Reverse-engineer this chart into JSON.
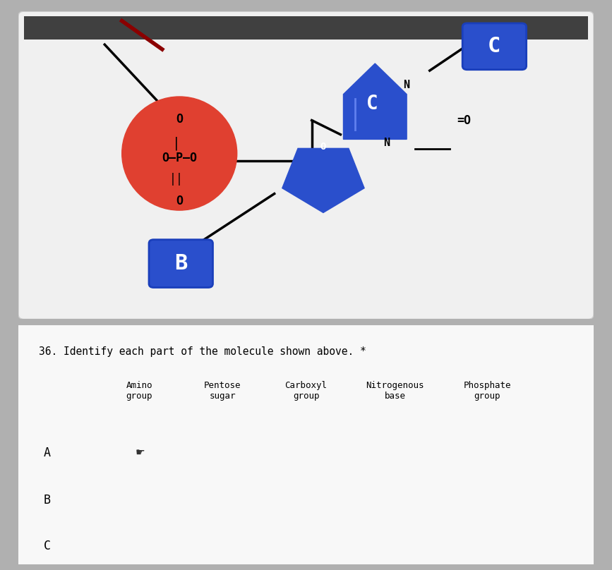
{
  "top_bg": "#e8e8e8",
  "bottom_bg": "#f0f0f0",
  "panel_bg": "#f8f8f8",
  "phosphate_color": "#e04030",
  "sugar_color": "#2a4fcc",
  "base_color": "#2a4fcc",
  "label_box_color": "#2a4fcc",
  "title_text": "36. Identify each part of the molecule shown above. *",
  "col_headers": [
    "Amino\ngroup",
    "Pentose\nsugar",
    "Carboxyl\ngroup",
    "Nitrogenous\nbase",
    "Phosphate\ngroup"
  ],
  "row_labels": [
    "A",
    "B",
    "C"
  ],
  "overall_bg": "#b0b0b0"
}
